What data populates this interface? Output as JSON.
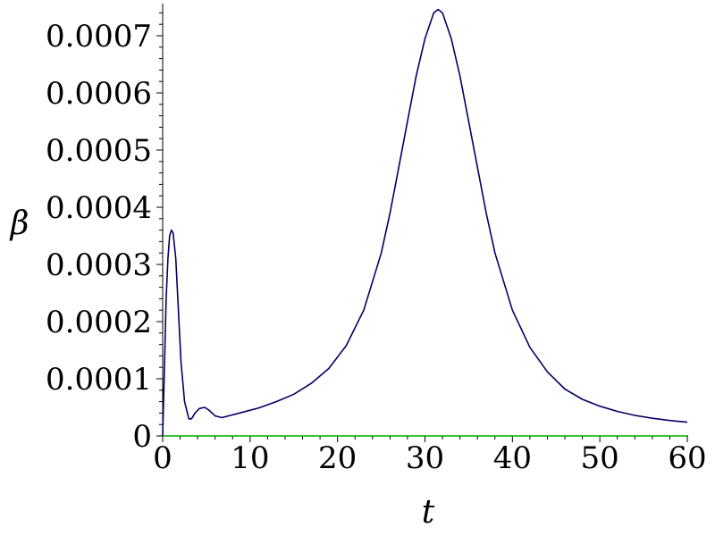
{
  "chart_data": {
    "type": "line",
    "title": "",
    "xlabel": "t",
    "ylabel": "β",
    "xlim": [
      0,
      60
    ],
    "ylim": [
      0,
      0.00075
    ],
    "grid": false,
    "legend": "none",
    "x_ticks": [
      "0",
      "10",
      "20",
      "30",
      "40",
      "50",
      "60"
    ],
    "y_ticks": [
      "0",
      "0.0001",
      "0.0002",
      "0.0003",
      "0.0004",
      "0.0005",
      "0.0006",
      "0.0007"
    ],
    "colors": {
      "curve": "#000066",
      "baseline": "#00aa00",
      "axis": "#000000"
    },
    "series": [
      {
        "x": [
          0,
          0.2,
          0.4,
          0.6,
          0.8,
          1.0,
          1.2,
          1.5,
          1.8,
          2.1,
          2.5,
          3.0,
          3.3,
          3.7,
          4.2,
          4.8,
          5.3,
          6.0,
          6.8,
          7.5,
          9,
          11,
          13,
          15,
          17,
          19,
          21,
          23,
          25,
          26,
          27,
          28,
          29,
          30,
          31,
          31.5,
          32,
          33,
          34,
          35,
          36,
          37,
          38,
          40,
          42,
          44,
          46,
          48,
          50,
          52,
          54,
          56,
          58,
          60
        ],
        "y": [
          0.0,
          0.00012,
          0.00024,
          0.00031,
          0.00035,
          0.00036,
          0.000355,
          0.00031,
          0.00022,
          0.00013,
          6e-05,
          3e-05,
          3e-05,
          4e-05,
          4.8e-05,
          5e-05,
          4.5e-05,
          3.5e-05,
          3.2e-05,
          3.5e-05,
          4.1e-05,
          4.9e-05,
          6e-05,
          7.3e-05,
          9.2e-05,
          0.000118,
          0.000158,
          0.00022,
          0.00032,
          0.00039,
          0.00047,
          0.00055,
          0.00063,
          0.000695,
          0.00074,
          0.000746,
          0.00074,
          0.000695,
          0.00063,
          0.00055,
          0.00047,
          0.00039,
          0.00032,
          0.00022,
          0.000155,
          0.000112,
          8.2e-05,
          6.4e-05,
          5.2e-05,
          4.3e-05,
          3.6e-05,
          3.1e-05,
          2.7e-05,
          2.4e-05
        ]
      },
      {
        "x": [
          0,
          60
        ],
        "y": [
          0,
          0
        ]
      }
    ]
  }
}
